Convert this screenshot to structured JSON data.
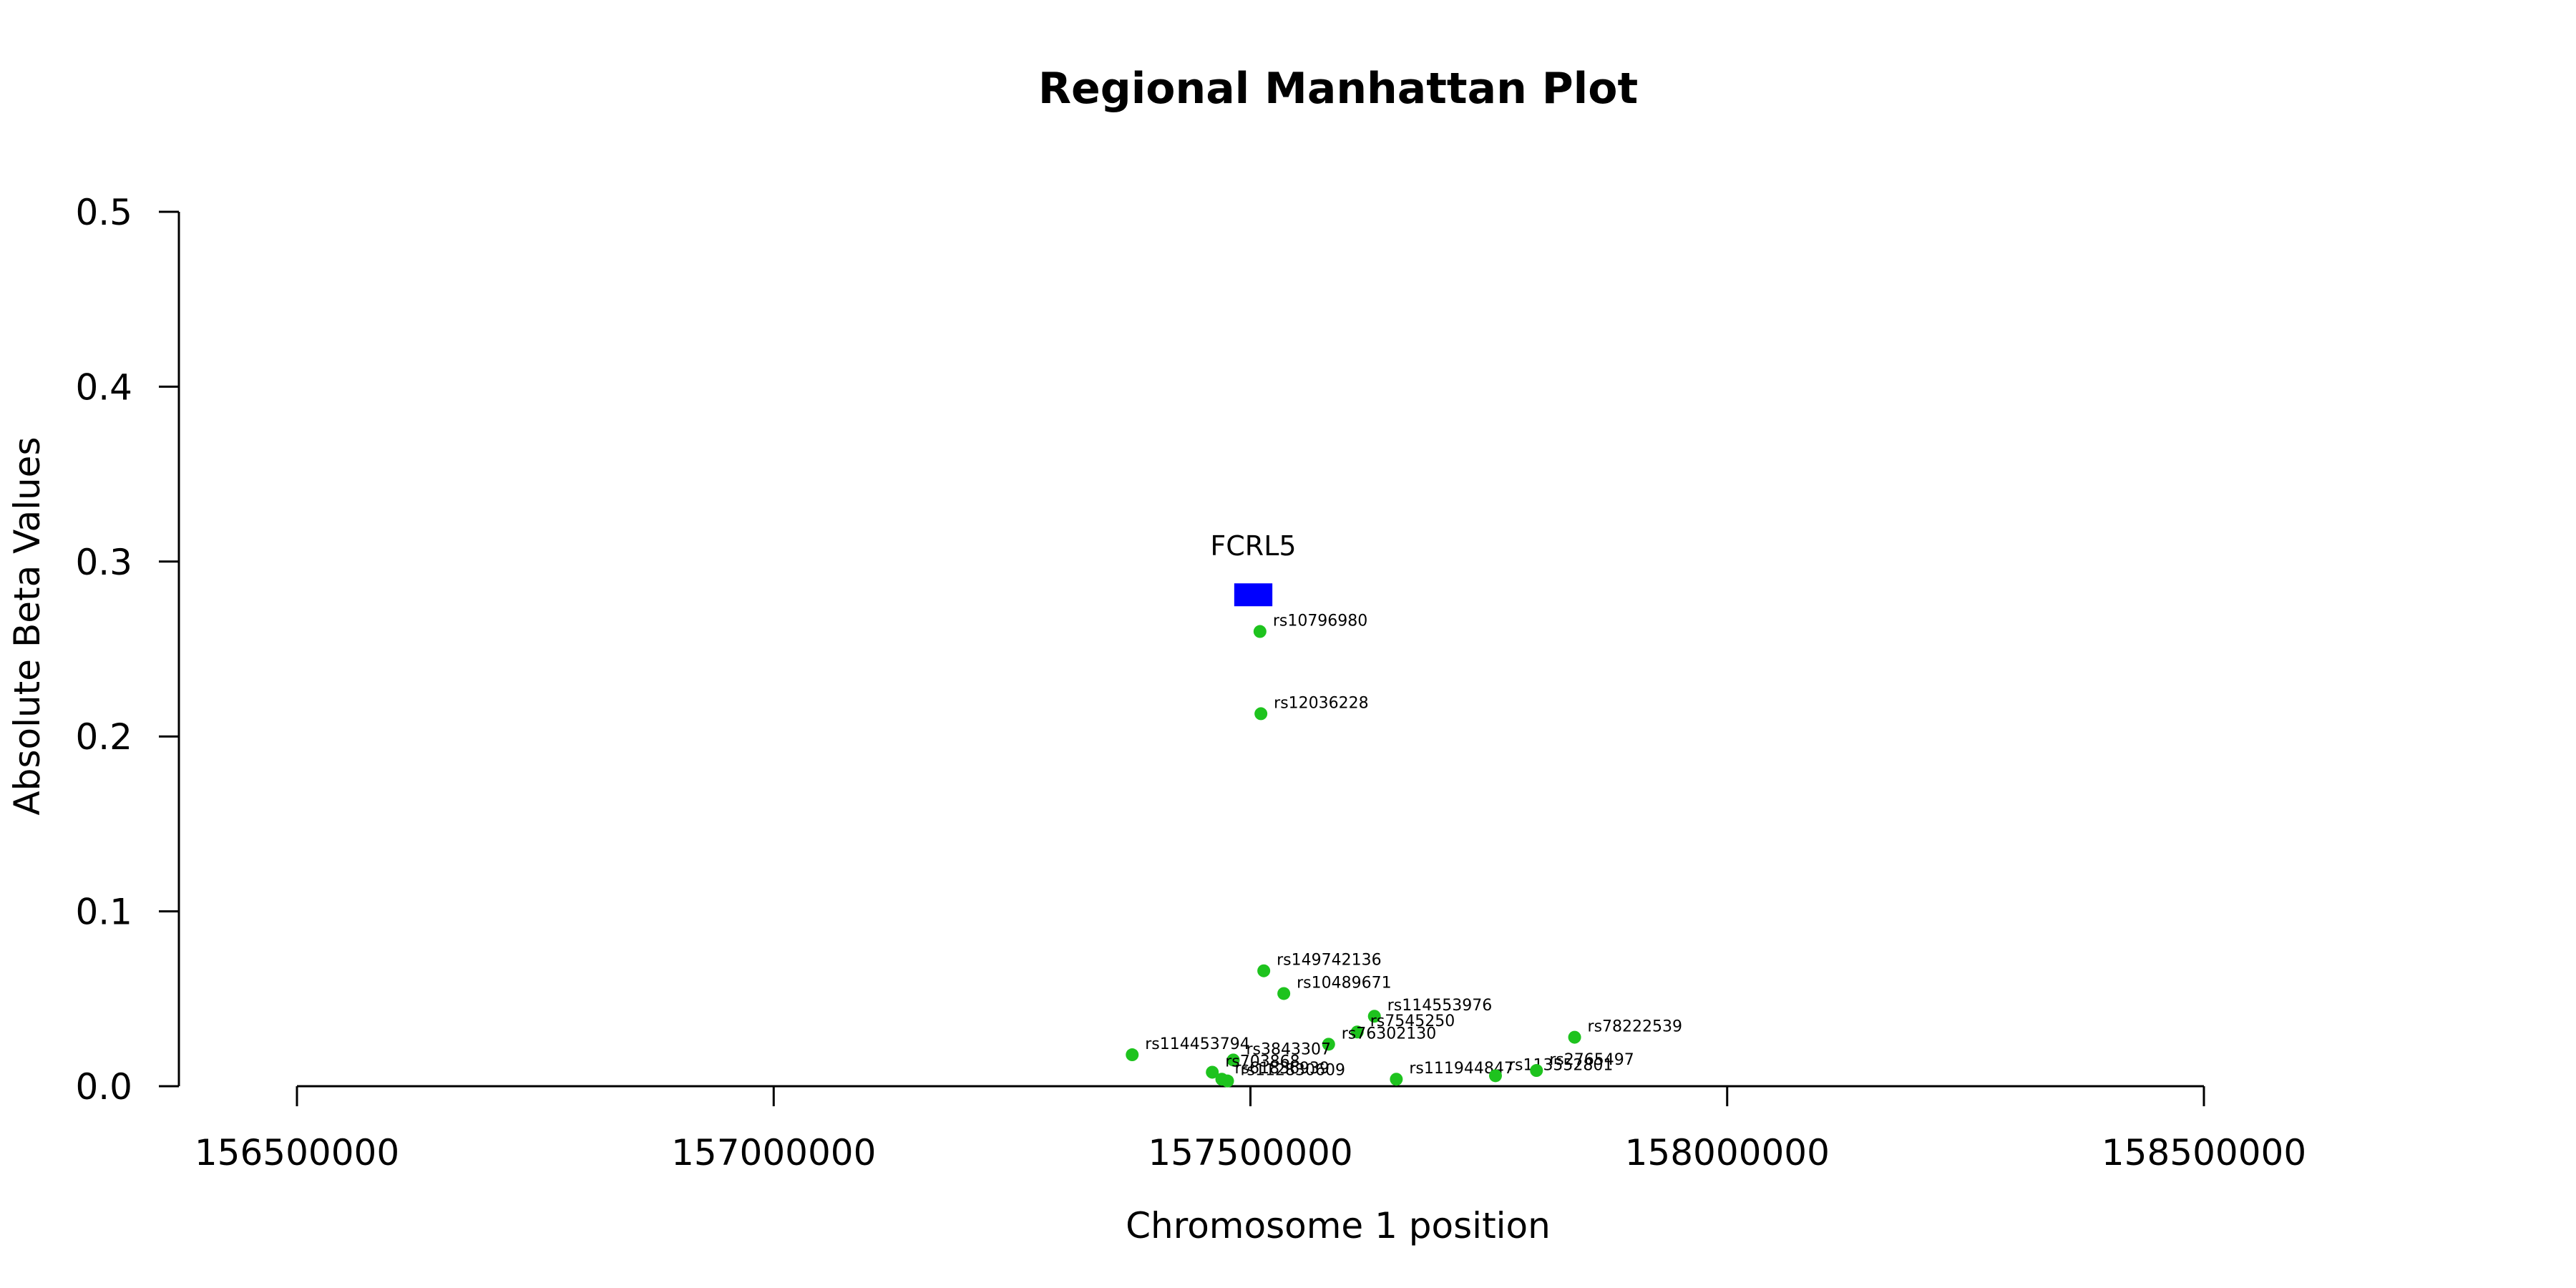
{
  "chart_data": {
    "type": "scatter",
    "title": "Regional Manhattan Plot",
    "xlabel": "Chromosome 1 position",
    "ylabel": "Absolute Beta Values",
    "xlim": [
      156500000,
      158500000
    ],
    "ylim": [
      0,
      0.5
    ],
    "x_ticks": [
      "156500000",
      "157000000",
      "157500000",
      "158000000",
      "158500000"
    ],
    "y_ticks": [
      "0.0",
      "0.1",
      "0.2",
      "0.3",
      "0.4",
      "0.5"
    ],
    "colors": {
      "point": "#1ec31e",
      "gene": "#0000ff"
    },
    "gene": {
      "name": "FCRL5",
      "start": 157483000,
      "end": 157523000,
      "y": 0.281
    },
    "points": [
      {
        "id": "rs10796980",
        "x": 157510000,
        "y": 0.26
      },
      {
        "id": "rs12036228",
        "x": 157511000,
        "y": 0.213
      },
      {
        "id": "rs149742136",
        "x": 157514000,
        "y": 0.066
      },
      {
        "id": "rs10489671",
        "x": 157535000,
        "y": 0.053
      },
      {
        "id": "rs114553976",
        "x": 157630000,
        "y": 0.04
      },
      {
        "id": "rs7545250",
        "x": 157612000,
        "y": 0.031
      },
      {
        "id": "rs76302130",
        "x": 157582000,
        "y": 0.024
      },
      {
        "id": "rs78222539",
        "x": 157840000,
        "y": 0.028
      },
      {
        "id": "rs114453794",
        "x": 157376000,
        "y": 0.018
      },
      {
        "id": "rs3843307",
        "x": 157482000,
        "y": 0.015
      },
      {
        "id": "rs703868",
        "x": 157460000,
        "y": 0.008
      },
      {
        "id": "rs61836939",
        "x": 157470000,
        "y": 0.004
      },
      {
        "id": "rs112830609",
        "x": 157476000,
        "y": 0.003
      },
      {
        "id": "rs111944847",
        "x": 157653000,
        "y": 0.004
      },
      {
        "id": "rs113552801",
        "x": 157757000,
        "y": 0.006
      },
      {
        "id": "rs2765497",
        "x": 157800000,
        "y": 0.009
      }
    ]
  }
}
